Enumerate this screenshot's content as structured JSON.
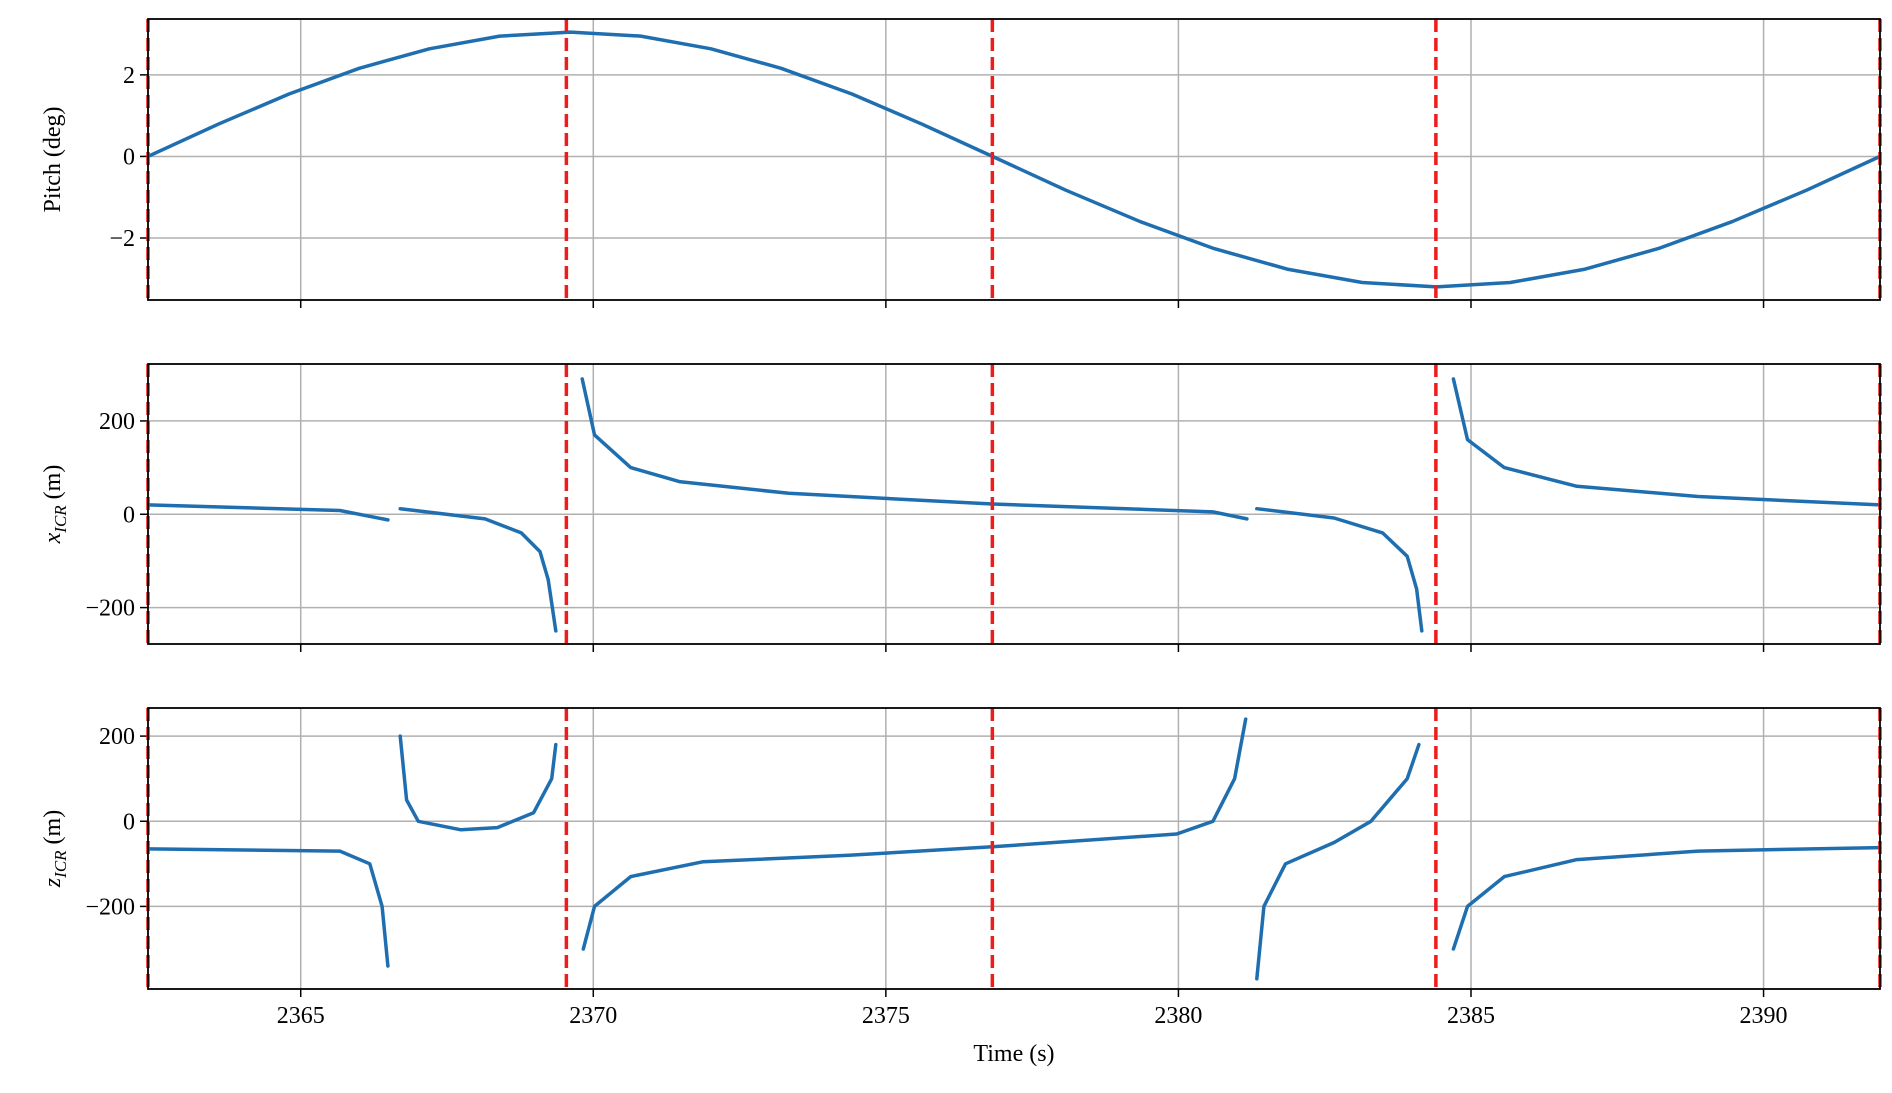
{
  "chart_data": [
    {
      "type": "line",
      "ylabel": {
        "text": "Pitch (deg)"
      },
      "x": [
        2362.39,
        2363.59,
        2364.8,
        2366.0,
        2367.2,
        2368.4,
        2369.61,
        2370.81,
        2372.01,
        2373.21,
        2374.42,
        2375.62,
        2376.82,
        2378.08,
        2379.35,
        2380.61,
        2381.88,
        2383.14,
        2384.41,
        2385.67,
        2386.93,
        2388.2,
        2389.46,
        2390.73,
        2391.99
      ],
      "values": [
        0,
        0.79,
        1.53,
        2.16,
        2.64,
        2.95,
        3.05,
        2.95,
        2.64,
        2.16,
        1.53,
        0.79,
        0,
        -0.83,
        -1.6,
        -2.26,
        -2.77,
        -3.09,
        -3.2,
        -3.09,
        -2.77,
        -2.26,
        -1.6,
        -0.83,
        0
      ],
      "color": "#1f6fb0",
      "xlim": [
        2362.39,
        2391.99
      ],
      "xticks": [
        2365,
        2370,
        2375,
        2380,
        2385,
        2390
      ],
      "show_xtick_labels": false,
      "ylim": [
        -3.52,
        3.37
      ],
      "yticks": [
        {
          "value": -2,
          "label": "−2"
        },
        0,
        2
      ],
      "vlines": [
        2362.39,
        2369.54,
        2376.82,
        2384.4,
        2391.99
      ],
      "vline_color": "#ee1c1c",
      "grid": true
    },
    {
      "type": "line",
      "ylabel": {
        "text": "x",
        "sub": "ICR",
        "unit": "(m)"
      },
      "x": [
        2362.39,
        2365.67,
        2366.49,
        null,
        2366.7,
        2368.15,
        2368.77,
        2369.09,
        2369.23,
        2369.36,
        null,
        2369.81,
        2370.02,
        2370.64,
        2371.47,
        2373.34,
        2376.82,
        2380.59,
        2381.17,
        null,
        2381.34,
        2382.66,
        2383.49,
        2383.91,
        2384.07,
        2384.16,
        null,
        2384.7,
        2384.94,
        2385.57,
        2386.81,
        2388.88,
        2391.99
      ],
      "values": [
        20,
        8,
        -12,
        null,
        12,
        -10,
        -40,
        -80,
        -140,
        -250,
        null,
        290,
        170,
        100,
        70,
        45,
        22,
        5,
        -10,
        null,
        12,
        -8,
        -40,
        -90,
        -160,
        -250,
        null,
        290,
        160,
        100,
        60,
        38,
        20
      ],
      "color": "#1f6fb0",
      "xlim": [
        2362.39,
        2391.99
      ],
      "xticks": [
        2365,
        2370,
        2375,
        2380,
        2385,
        2390
      ],
      "show_xtick_labels": false,
      "ylim": [
        -278,
        322
      ],
      "yticks": [
        {
          "value": -200,
          "label": "−200"
        },
        0,
        200
      ],
      "vlines": [
        2362.39,
        2369.54,
        2376.82,
        2384.4,
        2391.99
      ],
      "vline_color": "#ee1c1c",
      "grid": true
    },
    {
      "type": "line",
      "ylabel": {
        "text": "z",
        "sub": "ICR",
        "unit": "(m)"
      },
      "xlabel": "Time (s)",
      "x": [
        2362.39,
        2365.67,
        2366.18,
        2366.39,
        2366.49,
        null,
        2366.7,
        2366.81,
        2367.01,
        2367.74,
        2368.36,
        2368.98,
        2369.29,
        2369.36,
        null,
        2369.83,
        2370.02,
        2370.64,
        2371.88,
        2374.37,
        2376.82,
        2379.97,
        2380.59,
        2380.96,
        2381.15,
        null,
        2381.34,
        2381.46,
        2381.83,
        2382.66,
        2383.29,
        2383.91,
        2384.11,
        null,
        2384.7,
        2384.94,
        2385.57,
        2386.81,
        2388.88,
        2391.99
      ],
      "values": [
        -65,
        -70,
        -100,
        -200,
        -340,
        null,
        200,
        50,
        0,
        -20,
        -15,
        20,
        100,
        180,
        null,
        -300,
        -200,
        -130,
        -95,
        -80,
        -60,
        -30,
        0,
        100,
        240,
        null,
        -370,
        -200,
        -100,
        -50,
        0,
        100,
        180,
        null,
        -300,
        -200,
        -130,
        -90,
        -70,
        -62
      ],
      "color": "#1f6fb0",
      "xlim": [
        2362.39,
        2391.99
      ],
      "xticks": [
        2365,
        2370,
        2375,
        2380,
        2385,
        2390
      ],
      "show_xtick_labels": true,
      "ylim": [
        -394,
        266
      ],
      "yticks": [
        {
          "value": -200,
          "label": "−200"
        },
        0,
        200
      ],
      "vlines": [
        2362.39,
        2369.54,
        2376.82,
        2384.4,
        2391.99
      ],
      "vline_color": "#ee1c1c",
      "grid": true
    }
  ]
}
